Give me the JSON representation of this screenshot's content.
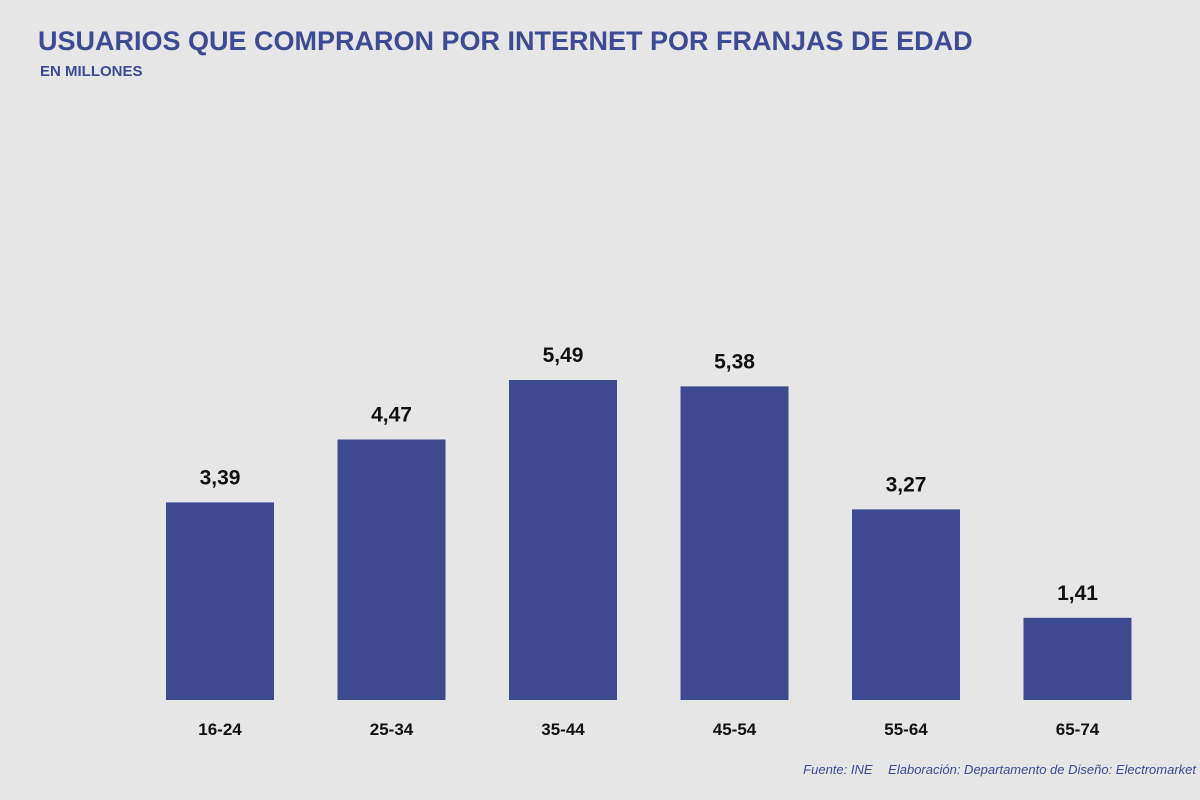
{
  "chart_data": {
    "type": "bar",
    "title": "USUARIOS QUE COMPRARON POR INTERNET POR FRANJAS DE EDAD",
    "subtitle": "EN MILLONES",
    "categories": [
      "16-24",
      "25-34",
      "35-44",
      "45-54",
      "55-64",
      "65-74"
    ],
    "values": [
      3.39,
      4.47,
      5.49,
      5.38,
      3.27,
      1.41
    ],
    "value_labels": [
      "3,39",
      "4,47",
      "5,49",
      "5,38",
      "3,27",
      "1,41"
    ],
    "bar_color": "#3d4a8f",
    "xlabel": "",
    "ylabel": "",
    "grid": false,
    "ylim": [
      0,
      5.49
    ]
  },
  "footer": {
    "source": "Fuente: INE",
    "credit": "Elaboración: Departamento de Diseño: Electromarket"
  }
}
